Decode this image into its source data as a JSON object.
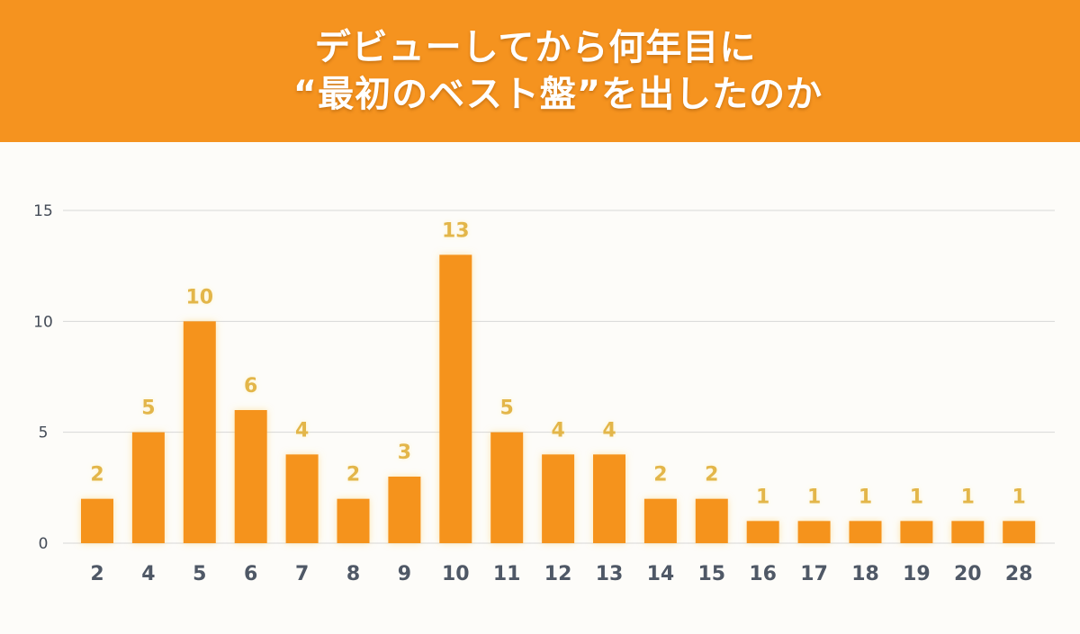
{
  "header": {
    "title_line1": "デビューしてから何年目に",
    "title_line2": "“最初のベスト盤”を出したのか"
  },
  "colors": {
    "header_bg": "#f5931f",
    "bar": "#f5931f",
    "data_label": "#e3b64a",
    "tick_label": "#4f5866"
  },
  "chart_data": {
    "type": "bar",
    "title": "デビューしてから何年目に“最初のベスト盤”を出したのか",
    "xlabel": "",
    "ylabel": "",
    "categories": [
      "2",
      "4",
      "5",
      "6",
      "7",
      "8",
      "9",
      "10",
      "11",
      "12",
      "13",
      "14",
      "15",
      "16",
      "17",
      "18",
      "19",
      "20",
      "28"
    ],
    "values": [
      2,
      5,
      10,
      6,
      4,
      2,
      3,
      13,
      5,
      4,
      4,
      2,
      2,
      1,
      1,
      1,
      1,
      1,
      1
    ],
    "ylim": [
      0,
      15
    ],
    "yticks": [
      0,
      5,
      10,
      15
    ],
    "grid": true,
    "data_labels": true,
    "legend": "none"
  }
}
